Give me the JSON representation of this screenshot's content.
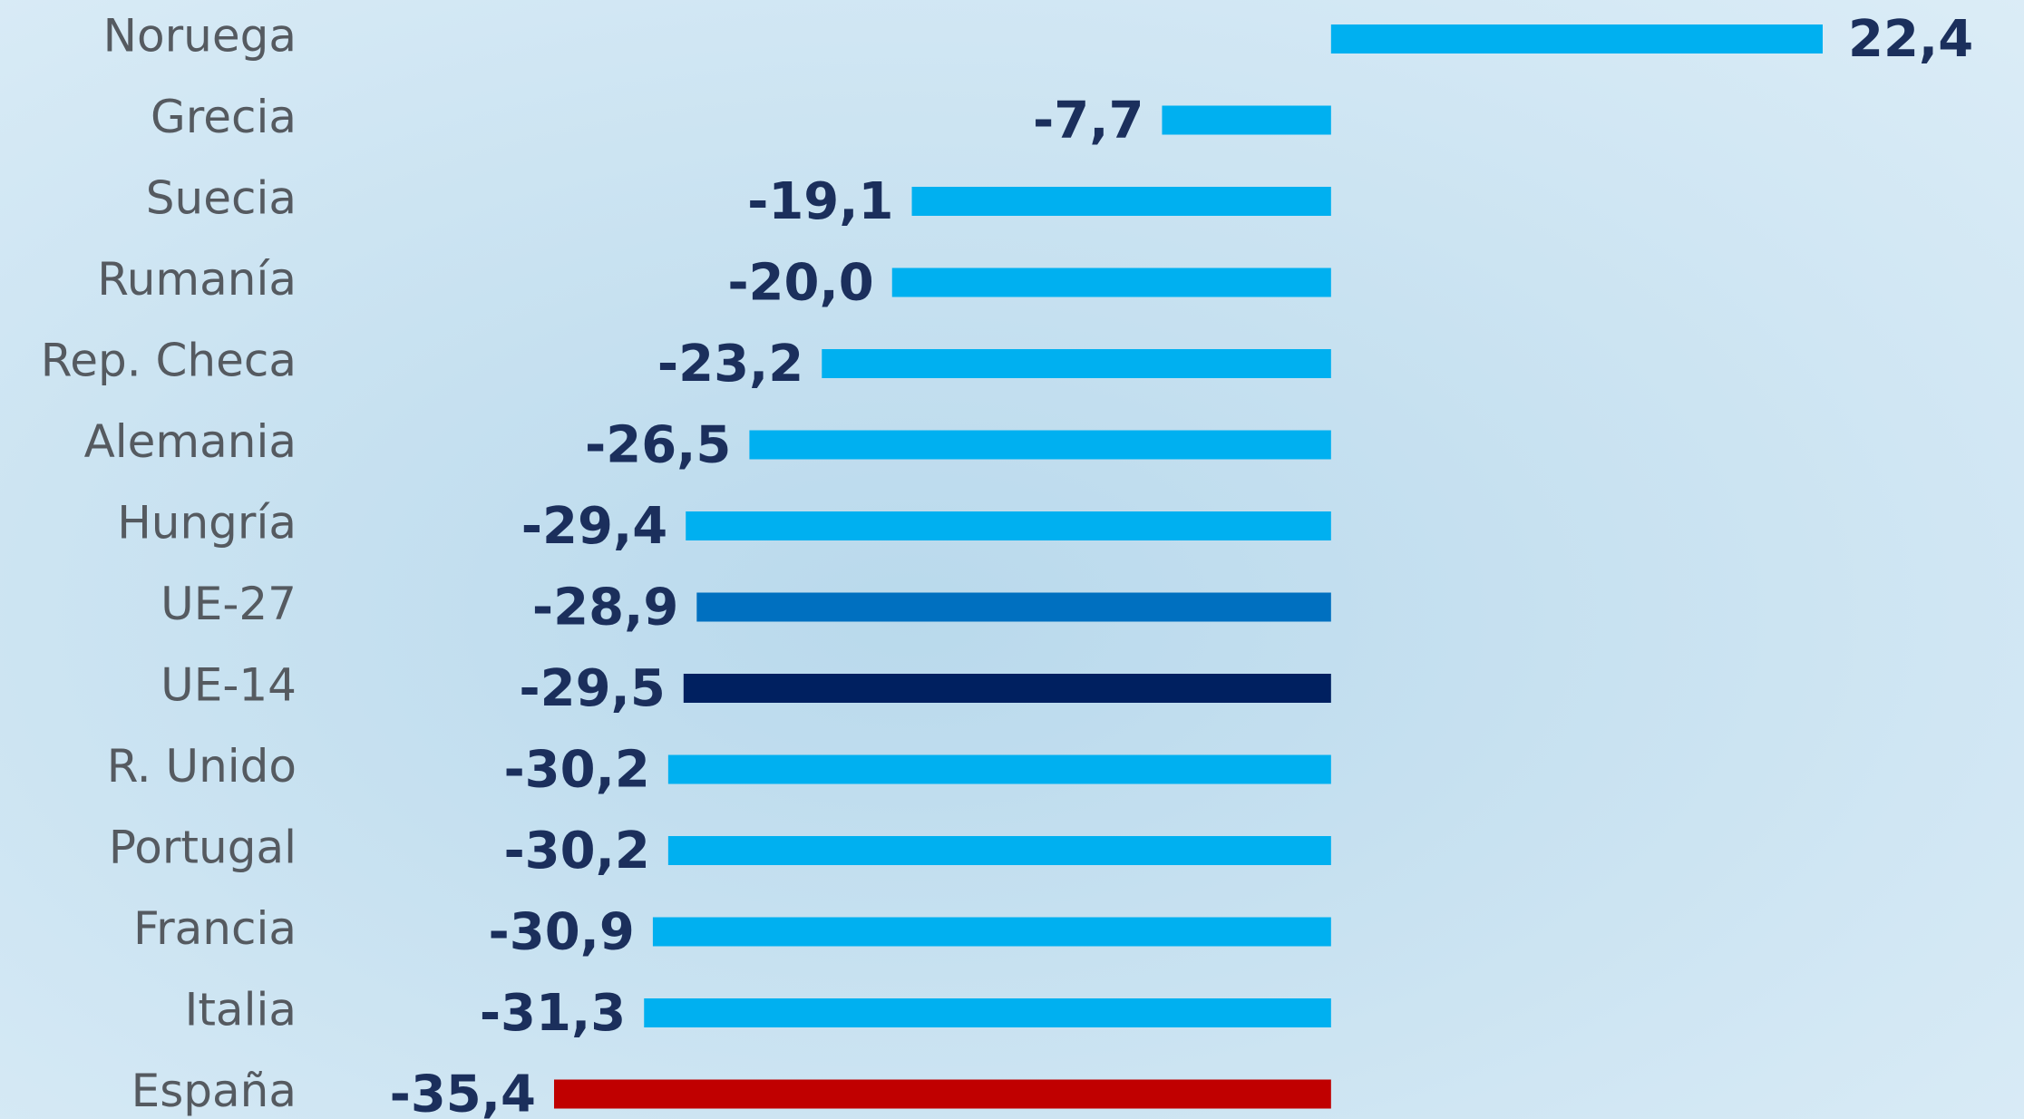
{
  "chart_data": {
    "type": "bar",
    "orientation": "horizontal",
    "categories": [
      "Noruega",
      "Grecia",
      "Suecia",
      "Rumanía",
      "Rep. Checa",
      "Alemania",
      "Hungría",
      "UE-27",
      "UE-14",
      "R. Unido",
      "Portugal",
      "Francia",
      "Italia",
      "España"
    ],
    "values": [
      22.4,
      -7.7,
      -19.1,
      -20.0,
      -23.2,
      -26.5,
      -29.4,
      -28.9,
      -29.5,
      -30.2,
      -30.2,
      -30.9,
      -31.3,
      -35.4
    ],
    "value_labels": [
      "22,4",
      "-7,7",
      "-19,1",
      "-20,0",
      "-23,2",
      "-26,5",
      "-29,4",
      "-28,9",
      "-29,5",
      "-30,2",
      "-30,2",
      "-30,9",
      "-31,3",
      "-35,4"
    ],
    "colors": [
      "#00b0f0",
      "#00b0f0",
      "#00b0f0",
      "#00b0f0",
      "#00b0f0",
      "#00b0f0",
      "#00b0f0",
      "#0070c0",
      "#002060",
      "#00b0f0",
      "#00b0f0",
      "#00b0f0",
      "#00b0f0",
      "#c00000"
    ]
  }
}
